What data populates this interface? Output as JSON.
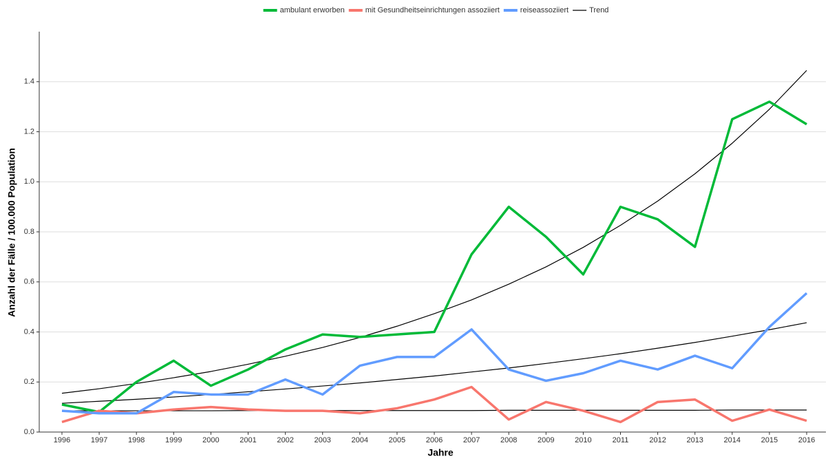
{
  "chart_data": {
    "type": "line",
    "xlabel": "Jahre",
    "ylabel": "Anzahl der Fälle / 100.000 Population",
    "categories": [
      "1996",
      "1997",
      "1998",
      "1999",
      "2000",
      "2001",
      "2002",
      "2003",
      "2004",
      "2005",
      "2006",
      "2007",
      "2008",
      "2009",
      "2010",
      "2011",
      "2012",
      "2013",
      "2014",
      "2015",
      "2016"
    ],
    "series": [
      {
        "name": "ambulant erworben",
        "color": "#00ba38",
        "values": [
          0.11,
          0.08,
          0.2,
          0.285,
          0.185,
          0.25,
          0.33,
          0.39,
          0.38,
          0.39,
          0.4,
          0.71,
          0.9,
          0.78,
          0.63,
          0.9,
          0.85,
          0.74,
          1.25,
          1.32,
          1.23
        ]
      },
      {
        "name": "mit Gesundheitseinrichtungen assoziiert",
        "color": "#f8766d",
        "values": [
          0.04,
          0.085,
          0.075,
          0.09,
          0.1,
          0.09,
          0.085,
          0.085,
          0.075,
          0.095,
          0.13,
          0.18,
          0.05,
          0.12,
          0.085,
          0.04,
          0.12,
          0.13,
          0.045,
          0.09,
          0.045
        ]
      },
      {
        "name": "reiseassoziiert",
        "color": "#619cff",
        "values": [
          0.085,
          0.075,
          0.075,
          0.16,
          0.15,
          0.15,
          0.21,
          0.15,
          0.265,
          0.3,
          0.3,
          0.41,
          0.25,
          0.205,
          0.235,
          0.285,
          0.25,
          0.305,
          0.255,
          0.42,
          0.555
        ]
      }
    ],
    "trend": {
      "name": "Trend",
      "color": "#000000",
      "lines": [
        [
          0.155,
          0.173,
          0.194,
          0.217,
          0.242,
          0.271,
          0.303,
          0.338,
          0.378,
          0.423,
          0.473,
          0.528,
          0.591,
          0.66,
          0.738,
          0.826,
          0.923,
          1.032,
          1.154,
          1.29,
          1.445
        ],
        [
          0.115,
          0.123,
          0.131,
          0.14,
          0.15,
          0.161,
          0.172,
          0.184,
          0.196,
          0.21,
          0.224,
          0.24,
          0.256,
          0.274,
          0.293,
          0.313,
          0.335,
          0.358,
          0.383,
          0.409,
          0.437
        ],
        [
          0.085,
          0.085,
          0.085,
          0.085,
          0.085,
          0.086,
          0.086,
          0.086,
          0.086,
          0.086,
          0.086,
          0.086,
          0.087,
          0.087,
          0.087,
          0.087,
          0.087,
          0.087,
          0.088,
          0.088,
          0.088
        ]
      ]
    },
    "ylim": [
      0,
      1.6
    ],
    "yticks": [
      {
        "value": 0,
        "label": "0.0"
      },
      0.2,
      0.4,
      0.6,
      0.8,
      {
        "value": 1,
        "label": "1.0"
      },
      1.2,
      1.4
    ],
    "grid": true
  }
}
